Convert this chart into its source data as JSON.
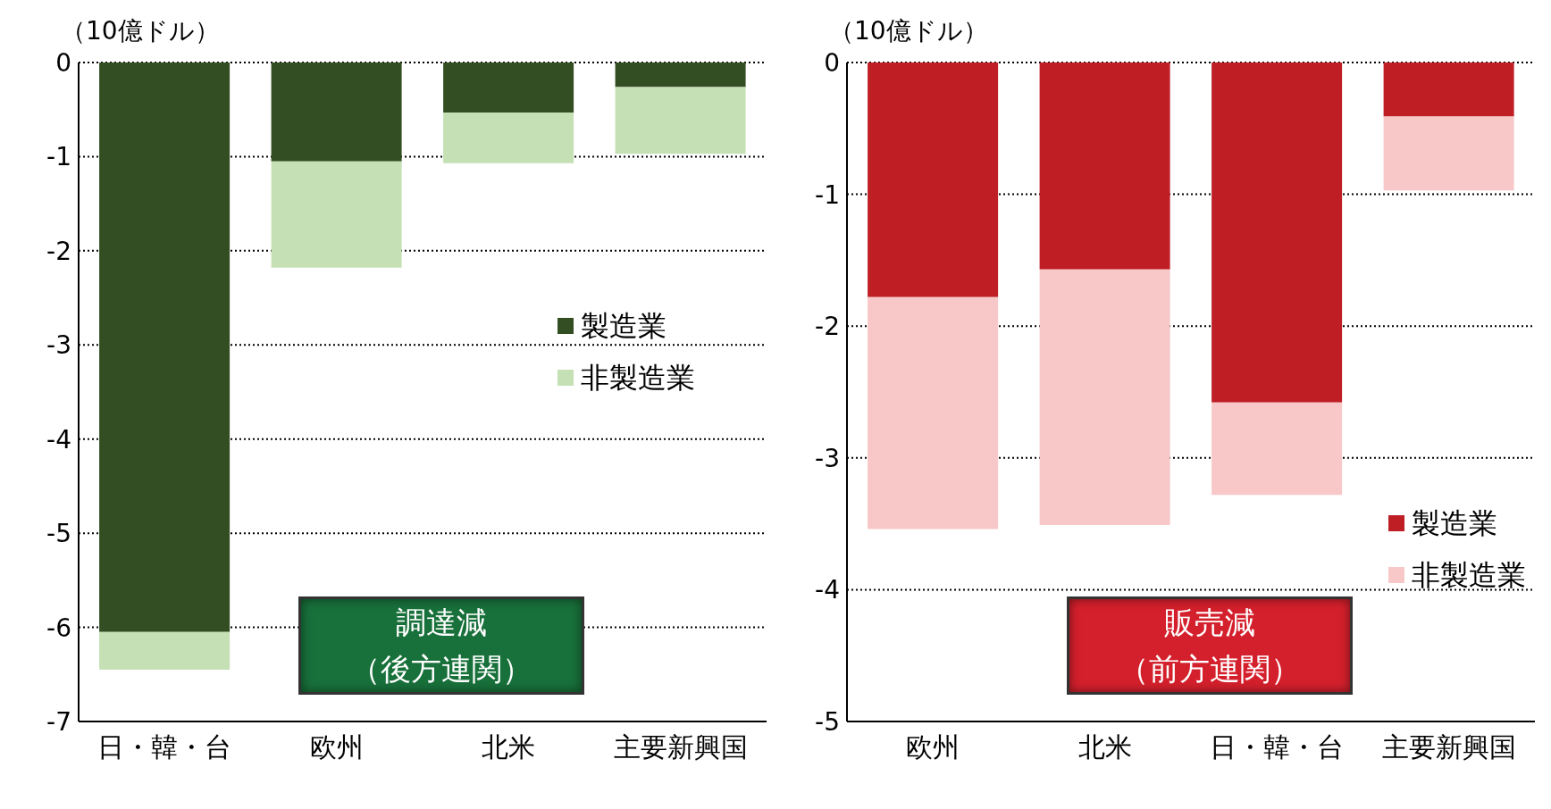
{
  "chart_data": [
    {
      "type": "bar",
      "stacked": true,
      "ylabel": "（10億ドル）",
      "categories": [
        "日・韓・台",
        "欧州",
        "北米",
        "主要新興国"
      ],
      "series": [
        {
          "name": "製造業",
          "color": "#344e24",
          "values": [
            -6.05,
            -1.05,
            -0.53,
            -0.26
          ]
        },
        {
          "name": "非製造業",
          "color": "#c5e0b4",
          "values": [
            -0.4,
            -1.13,
            -0.54,
            -0.71
          ]
        }
      ],
      "ylim": [
        -7,
        0
      ],
      "yticks": [
        -7,
        -6,
        -5,
        -4,
        -3,
        -2,
        -1,
        0
      ],
      "grid": "y",
      "legend": "right",
      "annotations": [
        "調達減",
        "（後方連関）"
      ]
    },
    {
      "type": "bar",
      "stacked": true,
      "ylabel": "（10億ドル）",
      "categories": [
        "欧州",
        "北米",
        "日・韓・台",
        "主要新興国"
      ],
      "series": [
        {
          "name": "製造業",
          "color": "#be1e24",
          "values": [
            -1.78,
            -1.57,
            -2.58,
            -0.41
          ]
        },
        {
          "name": "非製造業",
          "color": "#f8c8c8",
          "values": [
            -1.76,
            -1.94,
            -0.7,
            -0.56
          ]
        }
      ],
      "ylim": [
        -5,
        0
      ],
      "yticks": [
        -5,
        -4,
        -3,
        -2,
        -1,
        0
      ],
      "grid": "y",
      "legend": "bottom right",
      "annotations": [
        "販売減",
        "（前方連関）"
      ]
    }
  ]
}
